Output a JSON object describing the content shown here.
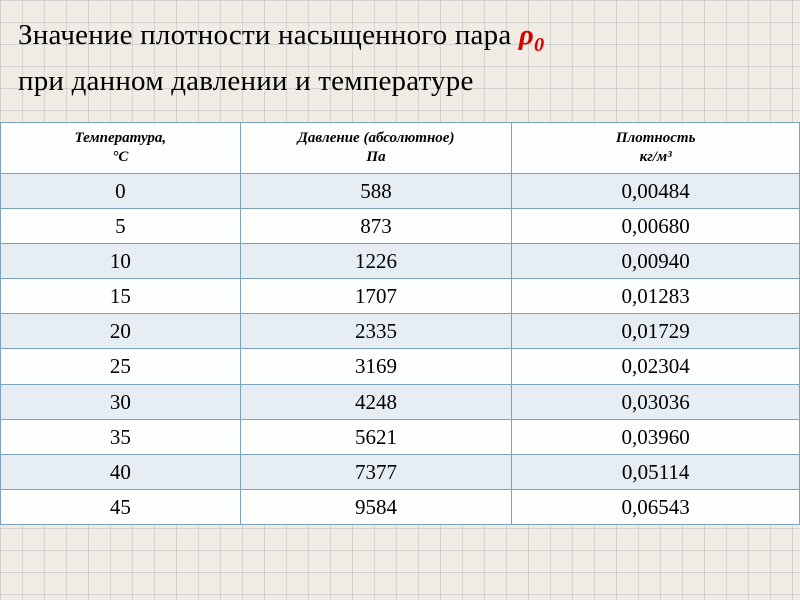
{
  "title": {
    "line1_pre": "Значение плотности насыщенного пара ",
    "rho": "ρ",
    "rho_sub": "0",
    "line2": "при данном давлении и температуре"
  },
  "table": {
    "type": "table",
    "header_bg": "#fdfefe",
    "stripe_odd_bg": "#e6eef4",
    "stripe_even_bg": "#fdfefe",
    "border_color": "#7da2c0",
    "header_fontsize": 15,
    "cell_fontsize": 21,
    "columns": [
      {
        "label": "Температура,",
        "unit": "°С",
        "width_pct": 30
      },
      {
        "label": "Давление (абсолютное)",
        "unit": "Па",
        "width_pct": 34
      },
      {
        "label": "Плотность",
        "unit": "кг/м³",
        "width_pct": 36
      }
    ],
    "rows": [
      [
        "0",
        "588",
        "0,00484"
      ],
      [
        "5",
        "873",
        "0,00680"
      ],
      [
        "10",
        "1226",
        "0,00940"
      ],
      [
        "15",
        "1707",
        "0,01283"
      ],
      [
        "20",
        "2335",
        "0,01729"
      ],
      [
        "25",
        "3169",
        "0,02304"
      ],
      [
        "30",
        "4248",
        "0,03036"
      ],
      [
        "35",
        "5621",
        "0,03960"
      ],
      [
        "40",
        "7377",
        "0,05114"
      ],
      [
        "45",
        "9584",
        "0,06543"
      ]
    ]
  },
  "colors": {
    "page_bg": "#f0ece3",
    "grid_line": "rgba(100,130,140,0.22)",
    "accent_red": "#d80000",
    "text": "#000000"
  }
}
